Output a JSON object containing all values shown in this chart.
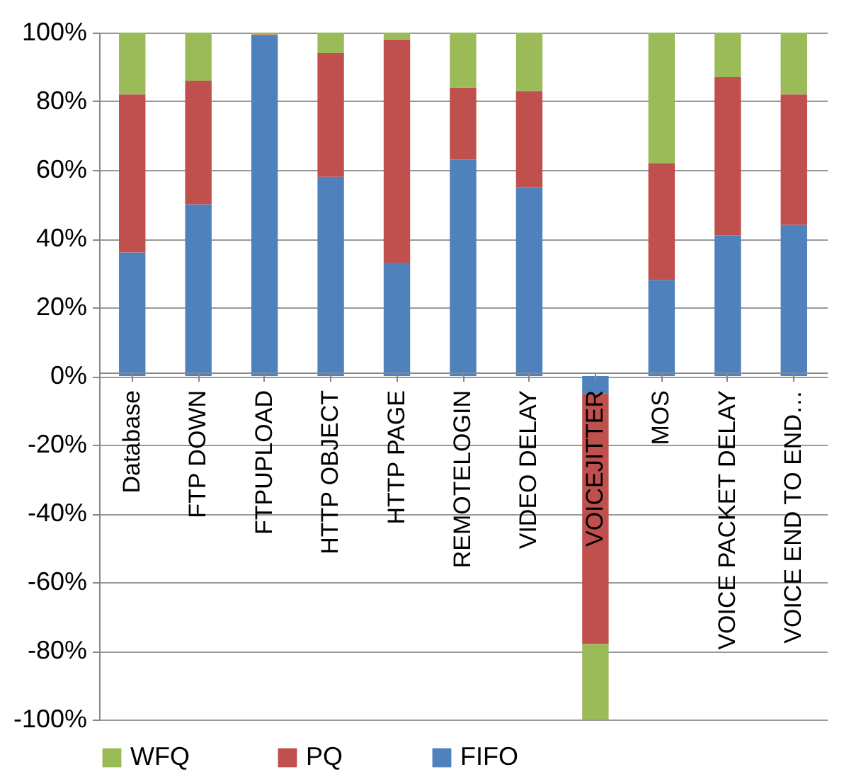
{
  "chart_data": {
    "type": "bar",
    "stacked": true,
    "categories": [
      "Database",
      "FTP DOWN",
      "FTPUPLOAD",
      "HTTP OBJECT",
      "HTTP PAGE",
      "REMOTELOGIN",
      "VIDEO DELAY",
      "VOICEJITTER",
      "MOS",
      "VOICE PACKET DELAY",
      "VOICE END TO END…"
    ],
    "series": [
      {
        "name": "FIFO",
        "color": "#4f81bd",
        "values": [
          36,
          50,
          99,
          58,
          33,
          63,
          55,
          -5,
          28,
          41,
          44
        ]
      },
      {
        "name": "PQ",
        "color": "#c0504d",
        "values": [
          46,
          36,
          0.5,
          36,
          65,
          21,
          28,
          -73,
          34,
          46,
          38
        ]
      },
      {
        "name": "WFQ",
        "color": "#9bbb59",
        "values": [
          18,
          14,
          0.5,
          6,
          2,
          16,
          17,
          -22,
          38,
          13,
          18
        ]
      }
    ],
    "ylim": [
      -100,
      100
    ],
    "yticks": [
      {
        "value": -100,
        "label": "-100%"
      },
      {
        "value": -80,
        "label": "-80%"
      },
      {
        "value": -60,
        "label": "-60%"
      },
      {
        "value": -40,
        "label": "-40%"
      },
      {
        "value": -20,
        "label": "-20%"
      },
      {
        "value": 0,
        "label": "0%"
      },
      {
        "value": 20,
        "label": "20%"
      },
      {
        "value": 40,
        "label": "40%"
      },
      {
        "value": 60,
        "label": "60%"
      },
      {
        "value": 80,
        "label": "80%"
      },
      {
        "value": 100,
        "label": "100%"
      }
    ],
    "grid": "y",
    "legend": "bottom"
  }
}
